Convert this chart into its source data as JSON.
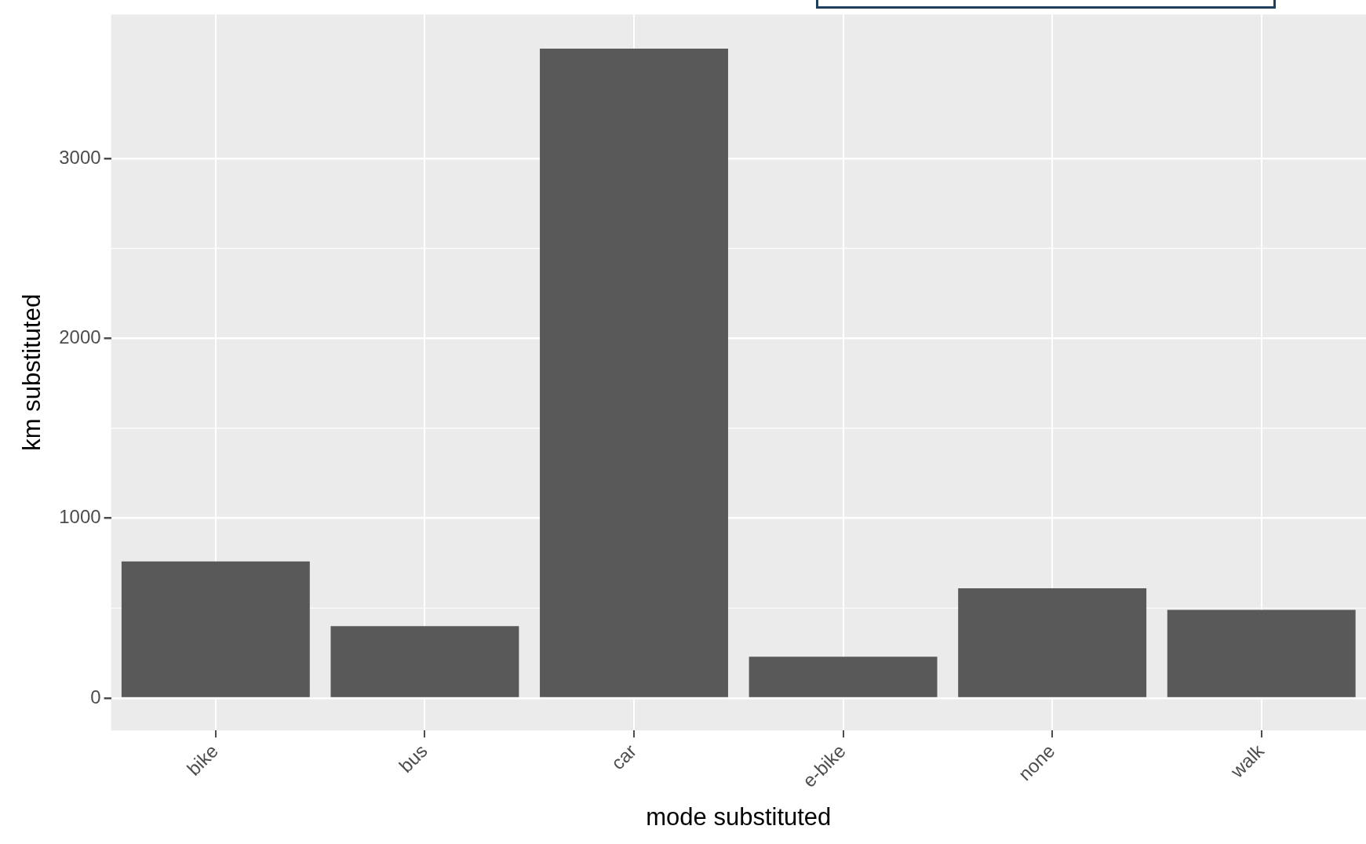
{
  "chart_data": {
    "type": "bar",
    "xlabel": "mode substituted",
    "ylabel": "km substituted",
    "categories": [
      "bike",
      "bus",
      "car",
      "e-bike",
      "none",
      "walk"
    ],
    "values": [
      760,
      400,
      3610,
      230,
      610,
      490
    ],
    "color": "#595959",
    "ylim": [
      -180,
      3800
    ],
    "yticks": [
      0,
      1000,
      2000,
      3000
    ],
    "grid": true
  }
}
